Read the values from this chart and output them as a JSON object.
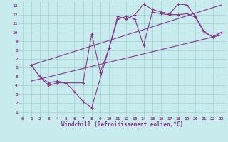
{
  "background_color": "#c8ecee",
  "grid_color": "#a8d4d8",
  "line_color": "#883388",
  "xlabel": "Windchill (Refroidissement éolien,°C)",
  "xlim": [
    -0.5,
    23.5
  ],
  "ylim": [
    0.5,
    13.5
  ],
  "xticks": [
    0,
    1,
    2,
    3,
    4,
    5,
    6,
    7,
    8,
    9,
    10,
    11,
    12,
    13,
    14,
    15,
    16,
    17,
    18,
    19,
    20,
    21,
    22,
    23
  ],
  "yticks": [
    1,
    2,
    3,
    4,
    5,
    6,
    7,
    8,
    9,
    10,
    11,
    12,
    13
  ],
  "line1_x": [
    1,
    2,
    3,
    4,
    5,
    6,
    7,
    8,
    10,
    11,
    12,
    13,
    14,
    15,
    16,
    17,
    18,
    19,
    20,
    21,
    22,
    23
  ],
  "line1_y": [
    6.3,
    5.0,
    4.0,
    4.3,
    4.3,
    3.3,
    2.2,
    1.5,
    8.2,
    11.8,
    11.5,
    12.0,
    13.2,
    12.6,
    12.3,
    12.1,
    13.2,
    13.1,
    11.8,
    10.1,
    9.5,
    10.0
  ],
  "line2_x": [
    1,
    2,
    3,
    4,
    5,
    7,
    8,
    9,
    10,
    11,
    12,
    13,
    14,
    15,
    16,
    17,
    18,
    19,
    20,
    21,
    22,
    23
  ],
  "line2_y": [
    6.3,
    5.0,
    4.3,
    4.5,
    4.3,
    4.3,
    9.8,
    5.5,
    8.2,
    11.5,
    11.8,
    11.5,
    8.5,
    12.3,
    12.1,
    12.0,
    12.0,
    12.1,
    11.7,
    10.0,
    9.5,
    10.0
  ],
  "line3_x": [
    1,
    23
  ],
  "line3_y": [
    6.3,
    13.1
  ],
  "line4_x": [
    1,
    23
  ],
  "line4_y": [
    4.5,
    9.7
  ]
}
